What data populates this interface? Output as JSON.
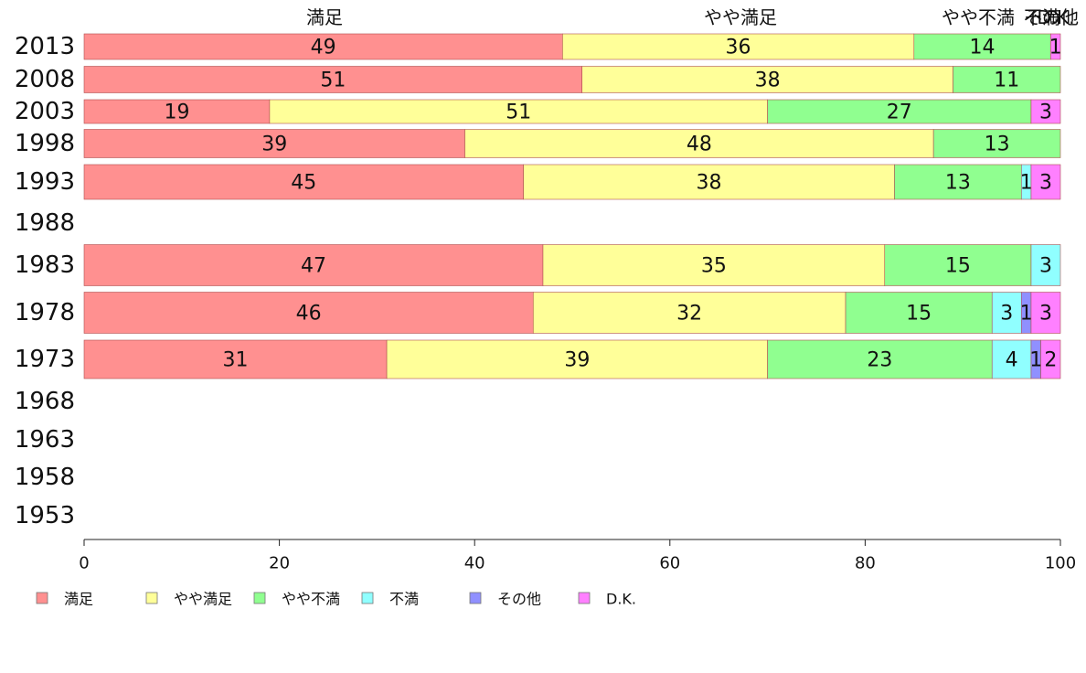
{
  "chart_data": {
    "type": "bar",
    "orientation": "horizontal",
    "stacked": true,
    "xlim": [
      0,
      100
    ],
    "x_ticks": [
      0,
      20,
      40,
      60,
      80,
      100
    ],
    "top_labels": [
      "満足",
      "やや満足",
      "やや不満",
      "不満",
      "その他",
      "D.K."
    ],
    "legend_position": "bottom",
    "categories": [
      "2013",
      "2008",
      "2003",
      "1998",
      "1993",
      "1988",
      "1983",
      "1978",
      "1973",
      "1968",
      "1963",
      "1958",
      "1953"
    ],
    "series": [
      {
        "name": "満足",
        "color": "#ff9090",
        "values": [
          49,
          51,
          19,
          39,
          45,
          null,
          47,
          46,
          31,
          null,
          null,
          null,
          null
        ]
      },
      {
        "name": "やや満足",
        "color": "#ffff99",
        "values": [
          36,
          38,
          51,
          48,
          38,
          null,
          35,
          32,
          39,
          null,
          null,
          null,
          null
        ]
      },
      {
        "name": "やや不満",
        "color": "#90ff90",
        "values": [
          14,
          11,
          27,
          13,
          13,
          null,
          15,
          15,
          23,
          null,
          null,
          null,
          null
        ]
      },
      {
        "name": "不満",
        "color": "#90ffff",
        "values": [
          0,
          0,
          0,
          0,
          1,
          null,
          3,
          3,
          4,
          null,
          null,
          null,
          null
        ]
      },
      {
        "name": "その他",
        "color": "#9090ff",
        "values": [
          0,
          0,
          0,
          0,
          0,
          null,
          0,
          1,
          1,
          null,
          null,
          null,
          null
        ]
      },
      {
        "name": "D.K.",
        "color": "#ff80ff",
        "values": [
          1,
          0,
          3,
          0,
          3,
          null,
          0,
          3,
          2,
          null,
          null,
          null,
          null
        ]
      }
    ]
  }
}
